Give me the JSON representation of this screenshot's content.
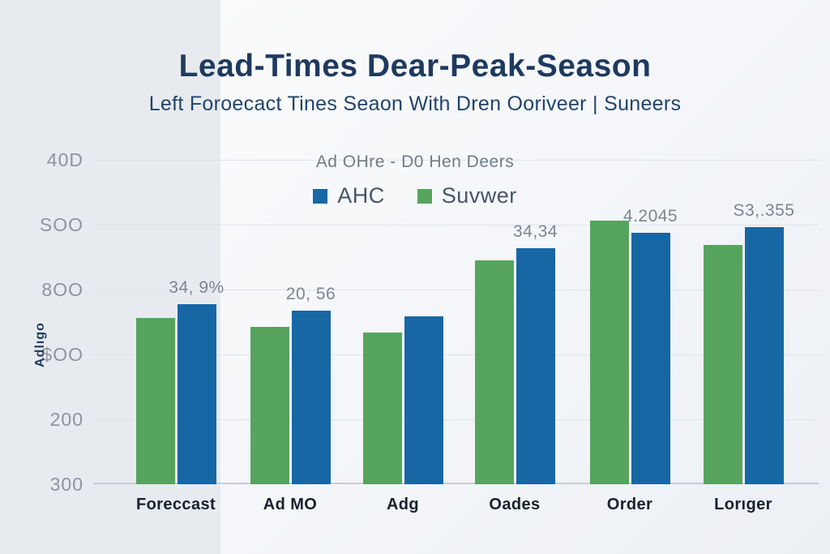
{
  "chart_data": {
    "type": "bar",
    "title": "Lead-Times Dear-Peak-Season",
    "subtitle": "Left Foroecact Tines Seaon With Dren Ooriveer | Suneers",
    "legend_title": "Ad OHre - D0 Hen Deers",
    "legend_position": "top-center",
    "legend": [
      {
        "label": "AHC",
        "color": "#1767a5"
      },
      {
        "label": "Suvwer",
        "color": "#56a45e"
      }
    ],
    "categories": [
      "Foreccast",
      "Ad MO",
      "Adg",
      "Oades",
      "Order",
      "Lorıger"
    ],
    "series": [
      {
        "name": "Suvwer",
        "color": "#56a45e",
        "values": [
          256,
          242,
          234,
          345,
          406,
          369
        ]
      },
      {
        "name": "AHC",
        "color": "#1767a5",
        "values": [
          278,
          268,
          259,
          364,
          388,
          396
        ]
      }
    ],
    "bar_labels": [
      "34, 9%",
      "20, 56",
      "",
      "34,34",
      "4.2045",
      "S3,.355"
    ],
    "y_ticks_top_to_bottom": [
      "40D",
      "SOO",
      "8OO",
      "$OO",
      "200",
      "300"
    ],
    "ylabel": "Adlıgo",
    "xlabel": "",
    "ylim": [
      0,
      500
    ],
    "grid": true
  },
  "colors": {
    "title": "#1e3a5f",
    "subtitle": "#224469",
    "legend_title": "#6f7b88",
    "legend_label": "#47556a",
    "y_tick": "#8e949d",
    "x_label": "#17212e",
    "bar_label": "#7e8590",
    "gridline": "#dfe3e8",
    "baseline": "#c7cdd4",
    "left_panel": "#e7ebef"
  }
}
